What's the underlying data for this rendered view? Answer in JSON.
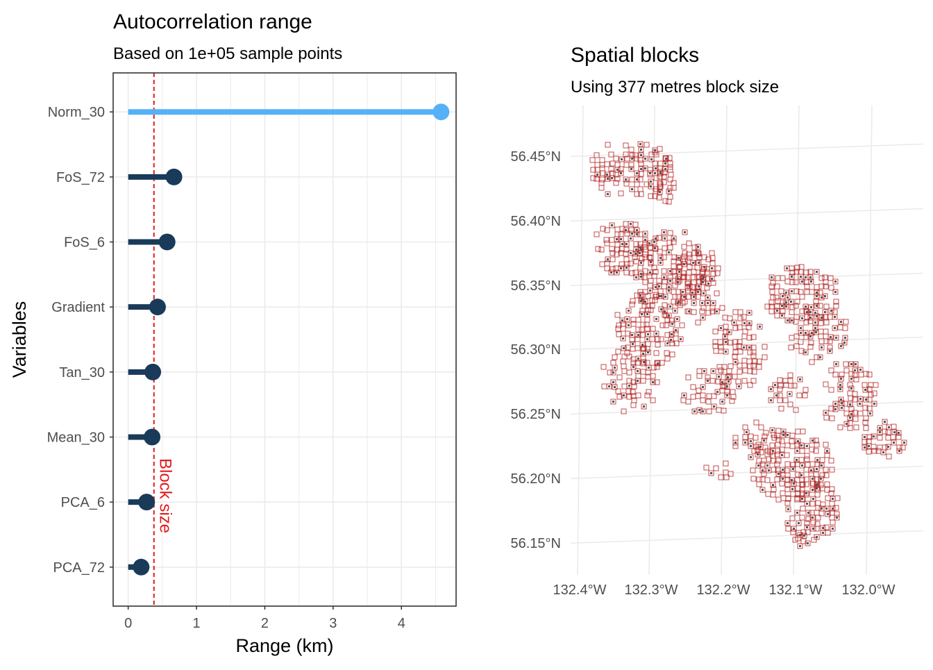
{
  "chart_data": [
    {
      "type": "lollipop",
      "title": "Autocorrelation range",
      "subtitle": "Based on 1e+05 sample points",
      "xlabel": "Range (km)",
      "ylabel": "Variables",
      "xlim": [
        -0.22,
        4.8
      ],
      "xticks": [
        0,
        1,
        2,
        3,
        4
      ],
      "grid": true,
      "categories": [
        "Norm_30",
        "FoS_72",
        "FoS_6",
        "Gradient",
        "Tan_30",
        "Mean_30",
        "PCA_6",
        "PCA_72"
      ],
      "values": [
        4.58,
        0.67,
        0.57,
        0.43,
        0.36,
        0.35,
        0.27,
        0.19
      ],
      "highlight": "Norm_30",
      "colors": {
        "highlight": "#56B1F7",
        "default": "#1A3A5A",
        "reference": "#E41A1C",
        "panel_border": "#333333",
        "grid": "#EBEBEB"
      },
      "reference_line": {
        "value": 0.377,
        "label": "Block size",
        "style": "dashed"
      }
    },
    {
      "type": "map",
      "title": "Spatial blocks",
      "subtitle": "Using 377 metres block size",
      "lat_ticks": [
        "56.15°N",
        "56.20°N",
        "56.25°N",
        "56.30°N",
        "56.35°N",
        "56.40°N",
        "56.45°N"
      ],
      "lon_ticks": [
        "132.4°W",
        "132.3°W",
        "132.2°W",
        "132.1°W",
        "132.0°W"
      ],
      "colors": {
        "block_outline": "#B22222",
        "grid": "#EBEBEB"
      }
    }
  ]
}
